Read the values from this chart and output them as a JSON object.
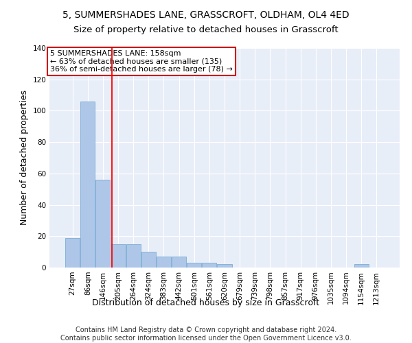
{
  "title": "5, SUMMERSHADES LANE, GRASSCROFT, OLDHAM, OL4 4ED",
  "subtitle": "Size of property relative to detached houses in Grasscroft",
  "xlabel": "Distribution of detached houses by size in Grasscroft",
  "ylabel": "Number of detached properties",
  "footer_line1": "Contains HM Land Registry data © Crown copyright and database right 2024.",
  "footer_line2": "Contains public sector information licensed under the Open Government Licence v3.0.",
  "annotation_line1": "5 SUMMERSHADES LANE: 158sqm",
  "annotation_line2": "← 63% of detached houses are smaller (135)",
  "annotation_line3": "36% of semi-detached houses are larger (78) →",
  "bar_labels": [
    "27sqm",
    "86sqm",
    "146sqm",
    "205sqm",
    "264sqm",
    "324sqm",
    "383sqm",
    "442sqm",
    "501sqm",
    "561sqm",
    "620sqm",
    "679sqm",
    "739sqm",
    "798sqm",
    "857sqm",
    "917sqm",
    "976sqm",
    "1035sqm",
    "1094sqm",
    "1154sqm",
    "1213sqm"
  ],
  "bar_values": [
    19,
    106,
    56,
    15,
    15,
    10,
    7,
    7,
    3,
    3,
    2,
    0,
    0,
    0,
    0,
    0,
    0,
    0,
    0,
    2,
    0
  ],
  "bar_color": "#aec6e8",
  "bar_edgecolor": "#7aadd4",
  "red_line_x": 2.58,
  "ylim": [
    0,
    140
  ],
  "yticks": [
    0,
    20,
    40,
    60,
    80,
    100,
    120,
    140
  ],
  "background_color": "#e8eef8",
  "annotation_box_color": "#ffffff",
  "annotation_box_edgecolor": "#cc0000",
  "title_fontsize": 10,
  "subtitle_fontsize": 9.5,
  "axis_label_fontsize": 9,
  "tick_fontsize": 7.5,
  "footer_fontsize": 7,
  "annotation_fontsize": 8
}
